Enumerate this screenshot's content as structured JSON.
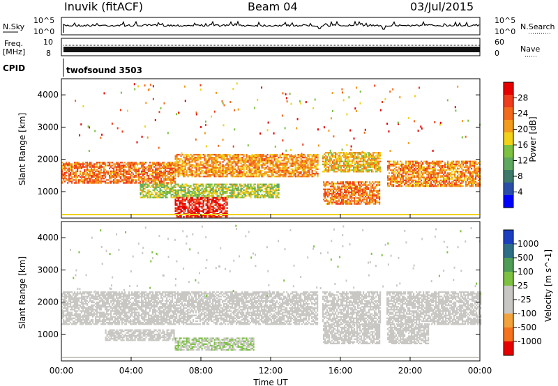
{
  "header": {
    "station": "Inuvik (fitACF)",
    "beam": "Beam 04",
    "date": "03/Jul/2015"
  },
  "strips": {
    "nsky": {
      "label": "N.Sky",
      "ticks": [
        "10^5",
        "10^0"
      ],
      "right_label": "N.Search",
      "right_ticks": [
        "10^5",
        "10^0"
      ]
    },
    "freq": {
      "label_top": "Freq.",
      "label_unit": "[MHz]",
      "ticks": [
        "10",
        "8"
      ],
      "right_label": "Nave",
      "right_ticks": [
        "60",
        "0"
      ]
    },
    "cpid": {
      "label": "CPID",
      "value": "twofsound 3503"
    }
  },
  "colors": {
    "power_scale": [
      "#0000ff",
      "#2a4ea8",
      "#3d7a6a",
      "#5fa860",
      "#7cc142",
      "#f2d218",
      "#f39b1c",
      "#f46a1d",
      "#ee3c1c",
      "#e60000"
    ],
    "velocity_scale": [
      "#e60000",
      "#f5731e",
      "#f3a33c",
      "#c9c7c3",
      "#c9c7c3",
      "#7cc142",
      "#4e9c56",
      "#2d6e86",
      "#1b3fbf"
    ]
  },
  "chart_data": [
    {
      "type": "heatmap",
      "name": "power",
      "ylabel": "Slant Range [km]",
      "yticks": [
        "4000",
        "3000",
        "2000",
        "1000"
      ],
      "ylim": [
        180,
        4500
      ],
      "xlim": [
        0,
        24
      ],
      "colorbar": {
        "label": "Power [dB]",
        "ticks": [
          "28",
          "24",
          "20",
          "16",
          "12",
          "8",
          "4"
        ],
        "range": [
          0,
          30
        ]
      },
      "bands": [
        {
          "t": [
            0,
            6.5
          ],
          "r": [
            1250,
            1900
          ],
          "value": 22
        },
        {
          "t": [
            6.5,
            14.8
          ],
          "r": [
            1450,
            2150
          ],
          "value": 20
        },
        {
          "t": [
            14.8,
            18.3
          ],
          "r": [
            1600,
            2200
          ],
          "value": 18
        },
        {
          "t": [
            18.6,
            24
          ],
          "r": [
            1150,
            1950
          ],
          "value": 21
        },
        {
          "t": [
            4.5,
            12.5
          ],
          "r": [
            800,
            1250
          ],
          "value": 14
        },
        {
          "t": [
            6.5,
            9.5
          ],
          "r": [
            200,
            800
          ],
          "value": 28
        },
        {
          "t": [
            15,
            18.3
          ],
          "r": [
            600,
            1300
          ],
          "value": 22
        }
      ]
    },
    {
      "type": "heatmap",
      "name": "velocity",
      "ylabel": "Slant Range [km]",
      "yticks": [
        "4000",
        "3000",
        "2000",
        "1000"
      ],
      "ylim": [
        180,
        4500
      ],
      "xlim": [
        0,
        24
      ],
      "xlabel": "Time UT",
      "xticks": [
        "00:00",
        "04:00",
        "08:00",
        "12:00",
        "16:00",
        "20:00",
        "00:00"
      ],
      "colorbar": {
        "label": "Velocity [m s^-1]",
        "ticks": [
          "1000",
          "500",
          "100",
          "25",
          "-25",
          "-100",
          "-500",
          "-1000"
        ],
        "range": [
          -1000,
          1000
        ]
      },
      "bands": [
        {
          "t": [
            0,
            24
          ],
          "r": [
            1300,
            2300
          ],
          "value": 0
        },
        {
          "t": [
            2.5,
            6.5
          ],
          "r": [
            800,
            1150
          ],
          "value": -100
        },
        {
          "t": [
            6.5,
            11
          ],
          "r": [
            500,
            900
          ],
          "value": 100
        },
        {
          "t": [
            15,
            21
          ],
          "r": [
            700,
            1300
          ],
          "value": -150
        }
      ]
    }
  ]
}
